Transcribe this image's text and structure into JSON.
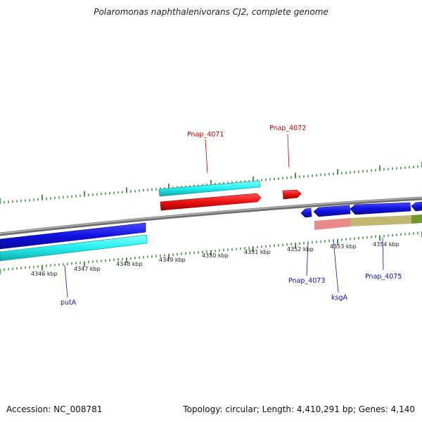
{
  "title": "Polaromonas naphthalenivorans CJ2, complete genome",
  "footer": {
    "accession": "Accession: NC_008781",
    "summary": "Topology: circular; Length: 4,410,291 bp; Genes: 4,140"
  },
  "colors": {
    "cds_forward": "#1010e0",
    "cds_reverse": "#ee1111",
    "gene_forward": "#22eeee",
    "tick": "#1e7e1e",
    "backbone": "#808080",
    "label_forward": "#1010c0",
    "label_reverse": "#cc0000",
    "rna_pink": "#e88a8a",
    "rna_olive": "#c0b870",
    "rna_green": "#6f9a2a"
  },
  "lower_axis_labels": [
    "4346 kbp",
    "4347 kbp",
    "4348 kbp",
    "4349 kbp",
    "4350 kbp",
    "4351 kbp",
    "4352 kbp",
    "4353 kbp",
    "4354 kbp"
  ],
  "gene_labels": [
    {
      "name": "Pnap_4071",
      "strand": "reverse"
    },
    {
      "name": "Pnap_4072",
      "strand": "reverse"
    },
    {
      "name": "putA",
      "strand": "forward"
    },
    {
      "name": "Pnap_4073",
      "strand": "forward"
    },
    {
      "name": "ksgA",
      "strand": "forward"
    },
    {
      "name": "Pnap_4075",
      "strand": "forward"
    }
  ]
}
